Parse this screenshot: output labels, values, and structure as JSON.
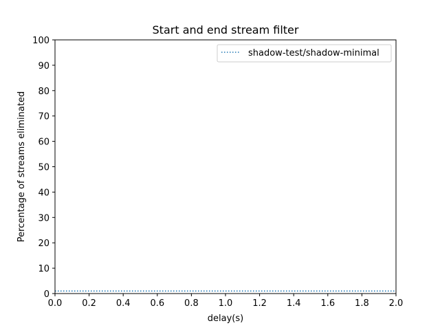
{
  "chart_data": {
    "type": "line",
    "title": "Start and end stream filter",
    "xlabel": "delay(s)",
    "ylabel": "Percentage of streams eliminated",
    "xlim": [
      0.0,
      2.0
    ],
    "ylim": [
      0,
      100
    ],
    "xticks": [
      0.0,
      0.2,
      0.4,
      0.6,
      0.8,
      1.0,
      1.2,
      1.4,
      1.6,
      1.8,
      2.0
    ],
    "xtick_labels": [
      "0.0",
      "0.2",
      "0.4",
      "0.6",
      "0.8",
      "1.0",
      "1.2",
      "1.4",
      "1.6",
      "1.8",
      "2.0"
    ],
    "yticks": [
      0,
      10,
      20,
      30,
      40,
      50,
      60,
      70,
      80,
      90,
      100
    ],
    "ytick_labels": [
      "0",
      "10",
      "20",
      "30",
      "40",
      "50",
      "60",
      "70",
      "80",
      "90",
      "100"
    ],
    "grid": false,
    "legend_position": "top-right",
    "series": [
      {
        "name": "shadow-test/shadow-minimal",
        "color": "#1f77b4",
        "line_style": "dotted",
        "x": [
          0.0,
          2.0
        ],
        "y": [
          1,
          1
        ]
      }
    ]
  }
}
